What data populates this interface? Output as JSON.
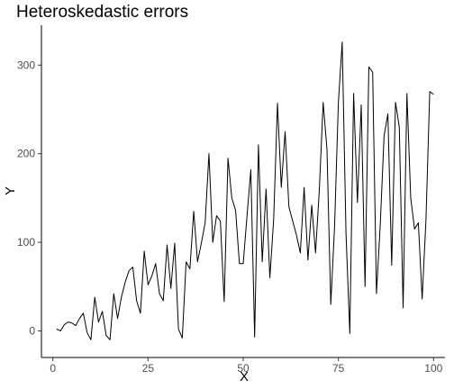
{
  "chart_data": {
    "type": "line",
    "title": "Heteroskedastic errors",
    "xlabel": "X",
    "ylabel": "Y",
    "xlim": [
      -3,
      103
    ],
    "ylim": [
      -30,
      345
    ],
    "x_ticks": [
      "0",
      "25",
      "50",
      "75",
      "100"
    ],
    "y_ticks": [
      "0",
      "100",
      "200",
      "300"
    ],
    "grid": false,
    "legend": "none",
    "series": [
      {
        "color": "#000000",
        "x": [
          1,
          2,
          3,
          4,
          5,
          6,
          7,
          8,
          9,
          10,
          11,
          12,
          13,
          14,
          15,
          16,
          17,
          18,
          19,
          20,
          21,
          22,
          23,
          24,
          25,
          26,
          27,
          28,
          29,
          30,
          31,
          32,
          33,
          34,
          35,
          36,
          37,
          38,
          39,
          40,
          41,
          42,
          43,
          44,
          45,
          46,
          47,
          48,
          49,
          50,
          51,
          52,
          53,
          54,
          55,
          56,
          57,
          58,
          59,
          60,
          61,
          62,
          63,
          64,
          65,
          66,
          67,
          68,
          69,
          70,
          71,
          72,
          73,
          74,
          75,
          76,
          77,
          78,
          79,
          80,
          81,
          82,
          83,
          84,
          85,
          86,
          87,
          88,
          89,
          90,
          91,
          92,
          93,
          94,
          95,
          96,
          97,
          98,
          99,
          100
        ],
        "y": [
          2,
          0,
          7,
          10,
          9,
          6,
          14,
          20,
          -2,
          -10,
          38,
          10,
          22,
          -5,
          -10,
          42,
          14,
          38,
          55,
          68,
          72,
          34,
          20,
          90,
          52,
          62,
          76,
          42,
          34,
          97,
          48,
          99,
          2,
          -8,
          78,
          70,
          135,
          78,
          99,
          122,
          200,
          100,
          130,
          124,
          33,
          195,
          150,
          136,
          76,
          76,
          130,
          182,
          -7,
          210,
          78,
          160,
          60,
          126,
          257,
          162,
          225,
          140,
          124,
          108,
          88,
          162,
          80,
          142,
          88,
          160,
          258,
          205,
          30,
          118,
          258,
          326,
          110,
          -3,
          268,
          145,
          255,
          50,
          298,
          292,
          42,
          120,
          220,
          245,
          74,
          258,
          230,
          26,
          268,
          150,
          115,
          122,
          36,
          125,
          270,
          267
        ]
      }
    ]
  }
}
